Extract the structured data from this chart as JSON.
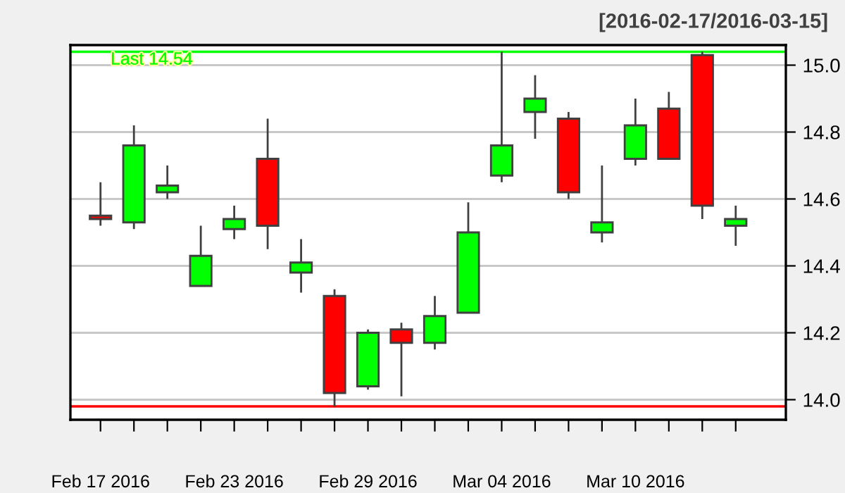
{
  "chart_data": {
    "type": "candlestick",
    "title": "[2016-02-17/2016-03-15]",
    "categories": [
      "Feb 17 2016",
      null,
      null,
      null,
      "Feb 23 2016",
      null,
      null,
      null,
      "Feb 29 2016",
      null,
      null,
      null,
      "Mar 04 2016",
      null,
      null,
      null,
      "Mar 10 2016",
      null,
      null,
      null
    ],
    "ohlc": [
      [
        14.55,
        14.65,
        14.52,
        14.54
      ],
      [
        14.53,
        14.82,
        14.51,
        14.76
      ],
      [
        14.62,
        14.7,
        14.6,
        14.64
      ],
      [
        14.34,
        14.52,
        14.34,
        14.43
      ],
      [
        14.51,
        14.58,
        14.48,
        14.54
      ],
      [
        14.72,
        14.84,
        14.45,
        14.52
      ],
      [
        14.38,
        14.48,
        14.32,
        14.41
      ],
      [
        14.31,
        14.33,
        13.98,
        14.02
      ],
      [
        14.04,
        14.21,
        14.03,
        14.2
      ],
      [
        14.21,
        14.23,
        14.01,
        14.17
      ],
      [
        14.17,
        14.31,
        14.15,
        14.25
      ],
      [
        14.26,
        14.59,
        14.26,
        14.5
      ],
      [
        14.67,
        15.04,
        14.65,
        14.76
      ],
      [
        14.86,
        14.97,
        14.78,
        14.9
      ],
      [
        14.84,
        14.86,
        14.6,
        14.62
      ],
      [
        14.5,
        14.7,
        14.47,
        14.53
      ],
      [
        14.72,
        14.9,
        14.7,
        14.82
      ],
      [
        14.87,
        14.92,
        14.72,
        14.72
      ],
      [
        15.03,
        15.04,
        14.54,
        14.58
      ],
      [
        14.52,
        14.58,
        14.46,
        14.54
      ]
    ],
    "colors": [
      "#ff0000",
      "#00ff00",
      "#00ff00",
      "#00ff00",
      "#00ff00",
      "#ff0000",
      "#00ff00",
      "#ff0000",
      "#00ff00",
      "#ff0000",
      "#00ff00",
      "#00ff00",
      "#00ff00",
      "#00ff00",
      "#ff0000",
      "#00ff00",
      "#00ff00",
      "#ff0000",
      "#ff0000",
      "#00ff00"
    ],
    "ylim": [
      13.94,
      15.06
    ],
    "yticks": [
      {
        "value": 14.0,
        "label": "14.0"
      },
      {
        "value": 14.2,
        "label": "14.2"
      },
      {
        "value": 14.4,
        "label": "14.4"
      },
      {
        "value": 14.6,
        "label": "14.6"
      },
      {
        "value": 14.8,
        "label": "14.8"
      },
      {
        "value": 15.0,
        "label": "15.0"
      }
    ],
    "grid": "y",
    "ref_lines": [
      {
        "axis": "y",
        "value": 15.04,
        "label": "Last 14.54",
        "color": "#00ff00"
      },
      {
        "axis": "y",
        "value": 13.98,
        "label": null,
        "color": "#ff0000"
      }
    ]
  }
}
